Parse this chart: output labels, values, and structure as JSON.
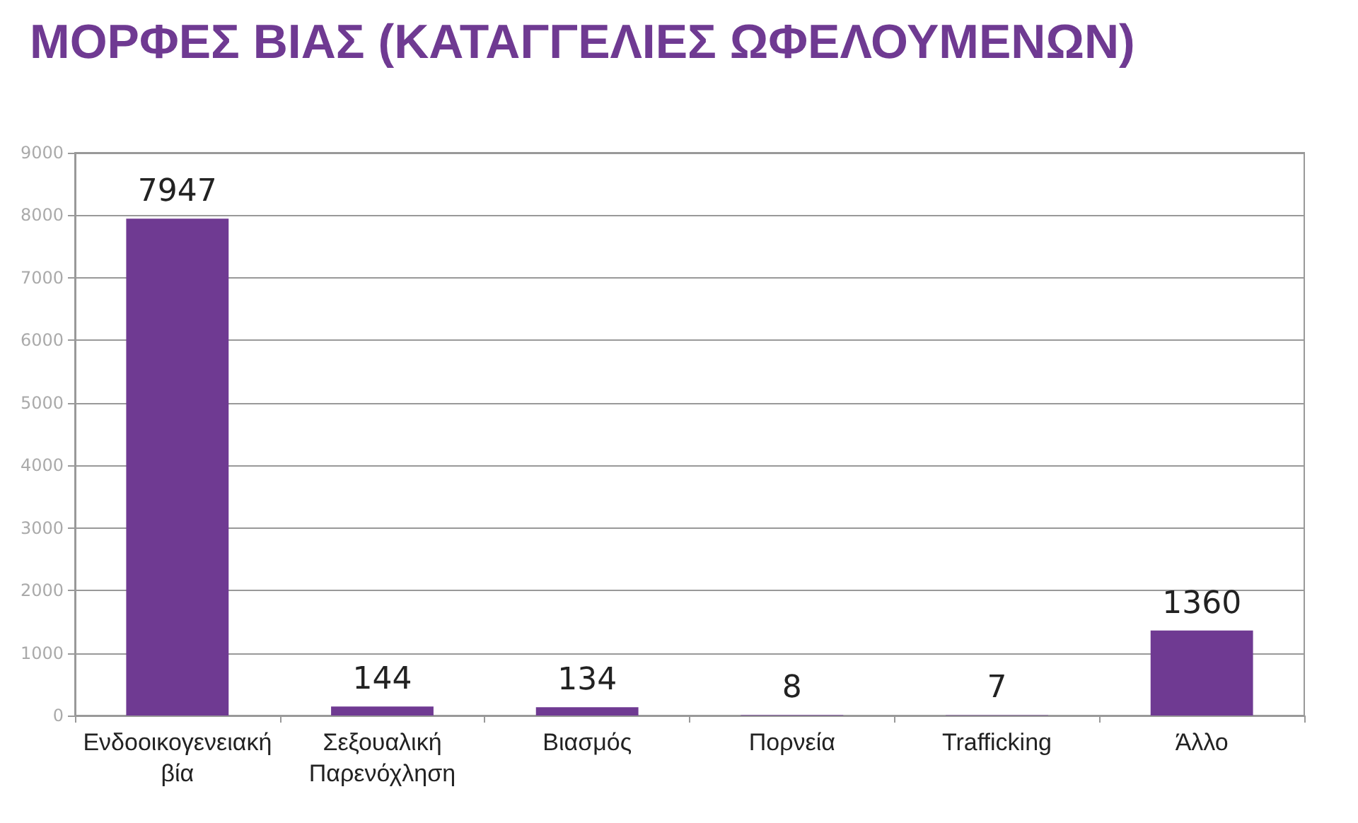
{
  "chart_data": {
    "type": "bar",
    "title": "ΜΟΡΦΕΣ ΒΙΑΣ (ΚΑΤΑΓΓΕΛΙΕΣ ΩΦΕΛΟΥΜΕΝΩΝ)",
    "categories": [
      "Ενδοοικογενειακή βία",
      "Σεξουαλική Παρενόχληση",
      "Βιασμός",
      "Πορνεία",
      "Trafficking",
      "Άλλο"
    ],
    "values": [
      7947,
      144,
      134,
      8,
      7,
      1360
    ],
    "color": "#6f3a92",
    "ylim": [
      0,
      9000
    ],
    "yticks": [
      0,
      1000,
      2000,
      3000,
      4000,
      5000,
      6000,
      7000,
      8000,
      9000
    ],
    "grid": "y",
    "data_labels": true
  }
}
